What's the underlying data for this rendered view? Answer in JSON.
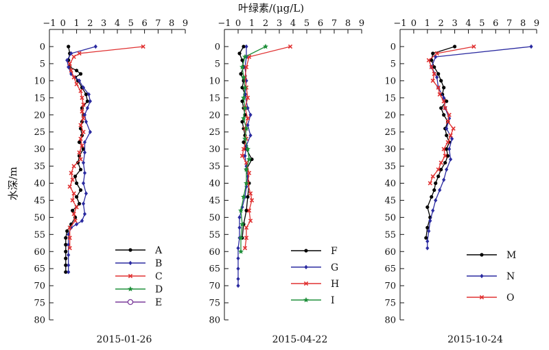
{
  "figure": {
    "top_label": "叶绿素/(μg/L)",
    "y_label": "水深/m"
  },
  "colors": {
    "A": "#000000",
    "B": "#2a2aa0",
    "C": "#e03030",
    "D": "#1f8f3a",
    "E": "#7a3a9a",
    "F": "#000000",
    "G": "#2a2aa0",
    "H": "#e03030",
    "I": "#1f8f3a",
    "M": "#000000",
    "N": "#2a2aa0",
    "O": "#e03030"
  },
  "chart_data": [
    {
      "type": "line",
      "title": "2015-01-26",
      "xlabel": "叶绿素/(μg/L)",
      "ylabel": "水深/m",
      "xlim": [
        -1,
        9
      ],
      "ylim": [
        0,
        80
      ],
      "y_reversed": true,
      "x_ticks": [
        -1,
        0,
        1,
        2,
        3,
        4,
        5,
        6,
        7,
        8,
        9
      ],
      "y_ticks": [
        0,
        5,
        10,
        15,
        20,
        25,
        30,
        35,
        40,
        45,
        50,
        55,
        60,
        65,
        70,
        75,
        80
      ],
      "legend_position": "bottom-right",
      "series": [
        {
          "name": "A",
          "marker": "circle",
          "points": [
            [
              0.4,
              0
            ],
            [
              0.5,
              2
            ],
            [
              0.4,
              4
            ],
            [
              0.5,
              6
            ],
            [
              1.0,
              7
            ],
            [
              1.3,
              8
            ],
            [
              0.9,
              9
            ],
            [
              1.1,
              10
            ],
            [
              1.4,
              12
            ],
            [
              1.7,
              14
            ],
            [
              1.8,
              16
            ],
            [
              1.4,
              18
            ],
            [
              1.5,
              20
            ],
            [
              1.4,
              22
            ],
            [
              1.3,
              24
            ],
            [
              1.4,
              26
            ],
            [
              1.2,
              28
            ],
            [
              1.5,
              30
            ],
            [
              1.2,
              32
            ],
            [
              1.1,
              34
            ],
            [
              1.3,
              36
            ],
            [
              0.9,
              38
            ],
            [
              1.0,
              40
            ],
            [
              1.3,
              42
            ],
            [
              1.0,
              44
            ],
            [
              1.2,
              46
            ],
            [
              0.7,
              48
            ],
            [
              0.9,
              50
            ],
            [
              0.6,
              52
            ],
            [
              0.3,
              54
            ],
            [
              0.2,
              56
            ],
            [
              0.2,
              58
            ],
            [
              0.2,
              60
            ],
            [
              0.2,
              62
            ],
            [
              0.2,
              64
            ],
            [
              0.2,
              66
            ]
          ]
        },
        {
          "name": "B",
          "marker": "diamond",
          "points": [
            [
              2.4,
              0
            ],
            [
              0.6,
              2
            ],
            [
              0.3,
              4
            ],
            [
              0.4,
              6
            ],
            [
              0.6,
              8
            ],
            [
              1.2,
              10
            ],
            [
              1.5,
              12
            ],
            [
              1.9,
              14
            ],
            [
              2.0,
              16
            ],
            [
              1.8,
              18
            ],
            [
              1.6,
              20
            ],
            [
              1.7,
              22
            ],
            [
              2.0,
              25
            ],
            [
              1.6,
              28
            ],
            [
              1.6,
              31
            ],
            [
              1.5,
              34
            ],
            [
              1.6,
              37
            ],
            [
              1.5,
              40
            ],
            [
              1.7,
              43
            ],
            [
              1.5,
              46
            ],
            [
              1.6,
              49
            ],
            [
              1.4,
              51
            ],
            [
              1.0,
              52
            ],
            [
              0.6,
              53
            ],
            [
              0.4,
              55
            ],
            [
              0.4,
              58
            ],
            [
              0.4,
              61
            ],
            [
              0.4,
              64
            ],
            [
              0.4,
              66
            ]
          ]
        },
        {
          "name": "C",
          "marker": "x",
          "points": [
            [
              5.9,
              0
            ],
            [
              1.2,
              2
            ],
            [
              0.8,
              3
            ],
            [
              0.5,
              5
            ],
            [
              0.6,
              7
            ],
            [
              0.8,
              9
            ],
            [
              1.0,
              11
            ],
            [
              1.3,
              13
            ],
            [
              1.4,
              15
            ],
            [
              1.5,
              17
            ],
            [
              1.4,
              19
            ],
            [
              1.5,
              21
            ],
            [
              1.3,
              23
            ],
            [
              1.5,
              25
            ],
            [
              1.3,
              27
            ],
            [
              1.4,
              29
            ],
            [
              1.2,
              31
            ],
            [
              1.3,
              33
            ],
            [
              0.8,
              35
            ],
            [
              0.6,
              37
            ],
            [
              0.7,
              39
            ],
            [
              0.5,
              41
            ],
            [
              0.8,
              43
            ],
            [
              0.7,
              45
            ],
            [
              1.0,
              47
            ],
            [
              0.8,
              49
            ],
            [
              0.9,
              51
            ],
            [
              0.5,
              53
            ],
            [
              0.5,
              56
            ],
            [
              0.5,
              59
            ]
          ]
        },
        {
          "name": "D",
          "marker": "star",
          "points": []
        },
        {
          "name": "E",
          "marker": "open-circle",
          "points": []
        }
      ]
    },
    {
      "type": "line",
      "title": "2015-04-22",
      "xlabel": "叶绿素/(μg/L)",
      "ylabel": "水深/m",
      "xlim": [
        -1,
        9
      ],
      "ylim": [
        0,
        80
      ],
      "y_reversed": true,
      "x_ticks": [
        -1,
        0,
        1,
        2,
        3,
        4,
        5,
        6,
        7,
        8,
        9
      ],
      "y_ticks": [
        0,
        5,
        10,
        15,
        20,
        25,
        30,
        35,
        40,
        45,
        50,
        55,
        60,
        65,
        70,
        75,
        80
      ],
      "legend_position": "bottom-right",
      "series": [
        {
          "name": "F",
          "marker": "circle",
          "points": [
            [
              0.4,
              0
            ],
            [
              0.1,
              2
            ],
            [
              0.3,
              4
            ],
            [
              0.4,
              6
            ],
            [
              0.2,
              8
            ],
            [
              0.4,
              10
            ],
            [
              0.3,
              12
            ],
            [
              0.5,
              14
            ],
            [
              0.3,
              16
            ],
            [
              0.4,
              18
            ],
            [
              0.5,
              20
            ],
            [
              0.3,
              22
            ],
            [
              0.4,
              24
            ],
            [
              0.5,
              26
            ],
            [
              0.4,
              28
            ],
            [
              0.6,
              30
            ],
            [
              1.0,
              33
            ],
            [
              0.6,
              36
            ],
            [
              0.8,
              40
            ],
            [
              0.7,
              44
            ],
            [
              0.6,
              48
            ],
            [
              0.4,
              52
            ],
            [
              0.3,
              56
            ]
          ]
        },
        {
          "name": "G",
          "marker": "diamond",
          "points": [
            [
              0.6,
              0
            ],
            [
              0.6,
              3
            ],
            [
              0.5,
              6
            ],
            [
              0.6,
              10
            ],
            [
              0.5,
              14
            ],
            [
              0.7,
              18
            ],
            [
              0.9,
              20
            ],
            [
              0.7,
              23
            ],
            [
              0.9,
              26
            ],
            [
              0.6,
              29
            ],
            [
              0.5,
              32
            ],
            [
              0.6,
              35
            ],
            [
              0.7,
              38
            ],
            [
              0.6,
              41
            ],
            [
              0.5,
              44
            ],
            [
              0.3,
              47
            ],
            [
              0.1,
              50
            ],
            [
              0.1,
              53
            ],
            [
              0.1,
              56
            ],
            [
              0.0,
              59
            ],
            [
              0.0,
              62
            ],
            [
              0.0,
              65
            ],
            [
              0.0,
              68
            ],
            [
              0.0,
              70
            ]
          ]
        },
        {
          "name": "H",
          "marker": "x",
          "points": [
            [
              3.8,
              0
            ],
            [
              0.8,
              3
            ],
            [
              0.6,
              6
            ],
            [
              0.5,
              9
            ],
            [
              0.6,
              12
            ],
            [
              0.7,
              15
            ],
            [
              0.5,
              18
            ],
            [
              0.7,
              21
            ],
            [
              0.5,
              24
            ],
            [
              0.6,
              27
            ],
            [
              0.4,
              30
            ],
            [
              0.3,
              32
            ],
            [
              0.6,
              34
            ],
            [
              0.8,
              37
            ],
            [
              0.7,
              40
            ],
            [
              0.9,
              43
            ],
            [
              1.0,
              45
            ],
            [
              0.8,
              48
            ],
            [
              0.9,
              51
            ],
            [
              0.6,
              53
            ],
            [
              0.6,
              56
            ],
            [
              0.5,
              59
            ]
          ]
        },
        {
          "name": "I",
          "marker": "star",
          "points": [
            [
              2.0,
              0
            ],
            [
              0.5,
              3
            ],
            [
              0.3,
              6
            ],
            [
              0.4,
              9
            ],
            [
              0.5,
              12
            ],
            [
              0.4,
              15
            ],
            [
              0.5,
              18
            ],
            [
              0.4,
              21
            ],
            [
              0.6,
              24
            ],
            [
              0.5,
              27
            ],
            [
              0.7,
              30
            ],
            [
              0.8,
              33
            ],
            [
              0.6,
              36
            ],
            [
              0.6,
              40
            ],
            [
              0.4,
              44
            ],
            [
              0.2,
              48
            ],
            [
              0.3,
              52
            ],
            [
              0.2,
              56
            ],
            [
              0.2,
              60
            ]
          ]
        }
      ]
    },
    {
      "type": "line",
      "title": "2015-10-24",
      "xlabel": "叶绿素/(μg/L)",
      "ylabel": "水深/m",
      "xlim": [
        -1,
        9
      ],
      "ylim": [
        0,
        80
      ],
      "y_reversed": true,
      "x_ticks": [
        -1,
        0,
        1,
        2,
        3,
        4,
        5,
        6,
        7,
        8,
        9
      ],
      "y_ticks": [
        0,
        5,
        10,
        15,
        20,
        25,
        30,
        35,
        40,
        45,
        50,
        55,
        60,
        65,
        70,
        75,
        80
      ],
      "legend_position": "bottom-right",
      "series": [
        {
          "name": "M",
          "marker": "circle",
          "points": [
            [
              3.0,
              0
            ],
            [
              1.4,
              2
            ],
            [
              1.3,
              4
            ],
            [
              1.5,
              6
            ],
            [
              1.8,
              8
            ],
            [
              2.0,
              10
            ],
            [
              2.2,
              12
            ],
            [
              2.1,
              14
            ],
            [
              2.4,
              16
            ],
            [
              2.0,
              18
            ],
            [
              2.2,
              20
            ],
            [
              2.5,
              22
            ],
            [
              2.3,
              24
            ],
            [
              2.4,
              26
            ],
            [
              2.6,
              28
            ],
            [
              2.4,
              30
            ],
            [
              2.5,
              32
            ],
            [
              2.3,
              34
            ],
            [
              2.0,
              36
            ],
            [
              1.8,
              38
            ],
            [
              1.6,
              40
            ],
            [
              1.5,
              42
            ],
            [
              1.3,
              44
            ],
            [
              1.0,
              47
            ],
            [
              1.2,
              50
            ],
            [
              1.0,
              53
            ],
            [
              0.9,
              56
            ]
          ]
        },
        {
          "name": "N",
          "marker": "diamond",
          "points": [
            [
              8.6,
              0
            ],
            [
              1.6,
              3
            ],
            [
              1.3,
              6
            ],
            [
              1.7,
              9
            ],
            [
              1.8,
              12
            ],
            [
              2.2,
              15
            ],
            [
              2.3,
              18
            ],
            [
              2.6,
              21
            ],
            [
              2.4,
              24
            ],
            [
              2.8,
              27
            ],
            [
              2.6,
              30
            ],
            [
              2.7,
              33
            ],
            [
              2.4,
              36
            ],
            [
              2.2,
              39
            ],
            [
              1.9,
              42
            ],
            [
              1.6,
              45
            ],
            [
              1.4,
              48
            ],
            [
              1.2,
              51
            ],
            [
              1.1,
              54
            ],
            [
              1.0,
              57
            ],
            [
              1.0,
              59
            ]
          ]
        },
        {
          "name": "O",
          "marker": "x",
          "points": [
            [
              4.4,
              0
            ],
            [
              1.7,
              2
            ],
            [
              1.1,
              4
            ],
            [
              1.3,
              6
            ],
            [
              1.5,
              8
            ],
            [
              1.4,
              10
            ],
            [
              1.8,
              12
            ],
            [
              1.9,
              14
            ],
            [
              2.2,
              16
            ],
            [
              2.3,
              18
            ],
            [
              2.6,
              20
            ],
            [
              2.5,
              22
            ],
            [
              2.9,
              24
            ],
            [
              2.7,
              26
            ],
            [
              2.5,
              28
            ],
            [
              2.2,
              30
            ],
            [
              2.3,
              32
            ],
            [
              2.0,
              34
            ],
            [
              1.8,
              36
            ],
            [
              1.4,
              38
            ],
            [
              1.2,
              40
            ]
          ]
        }
      ]
    }
  ]
}
